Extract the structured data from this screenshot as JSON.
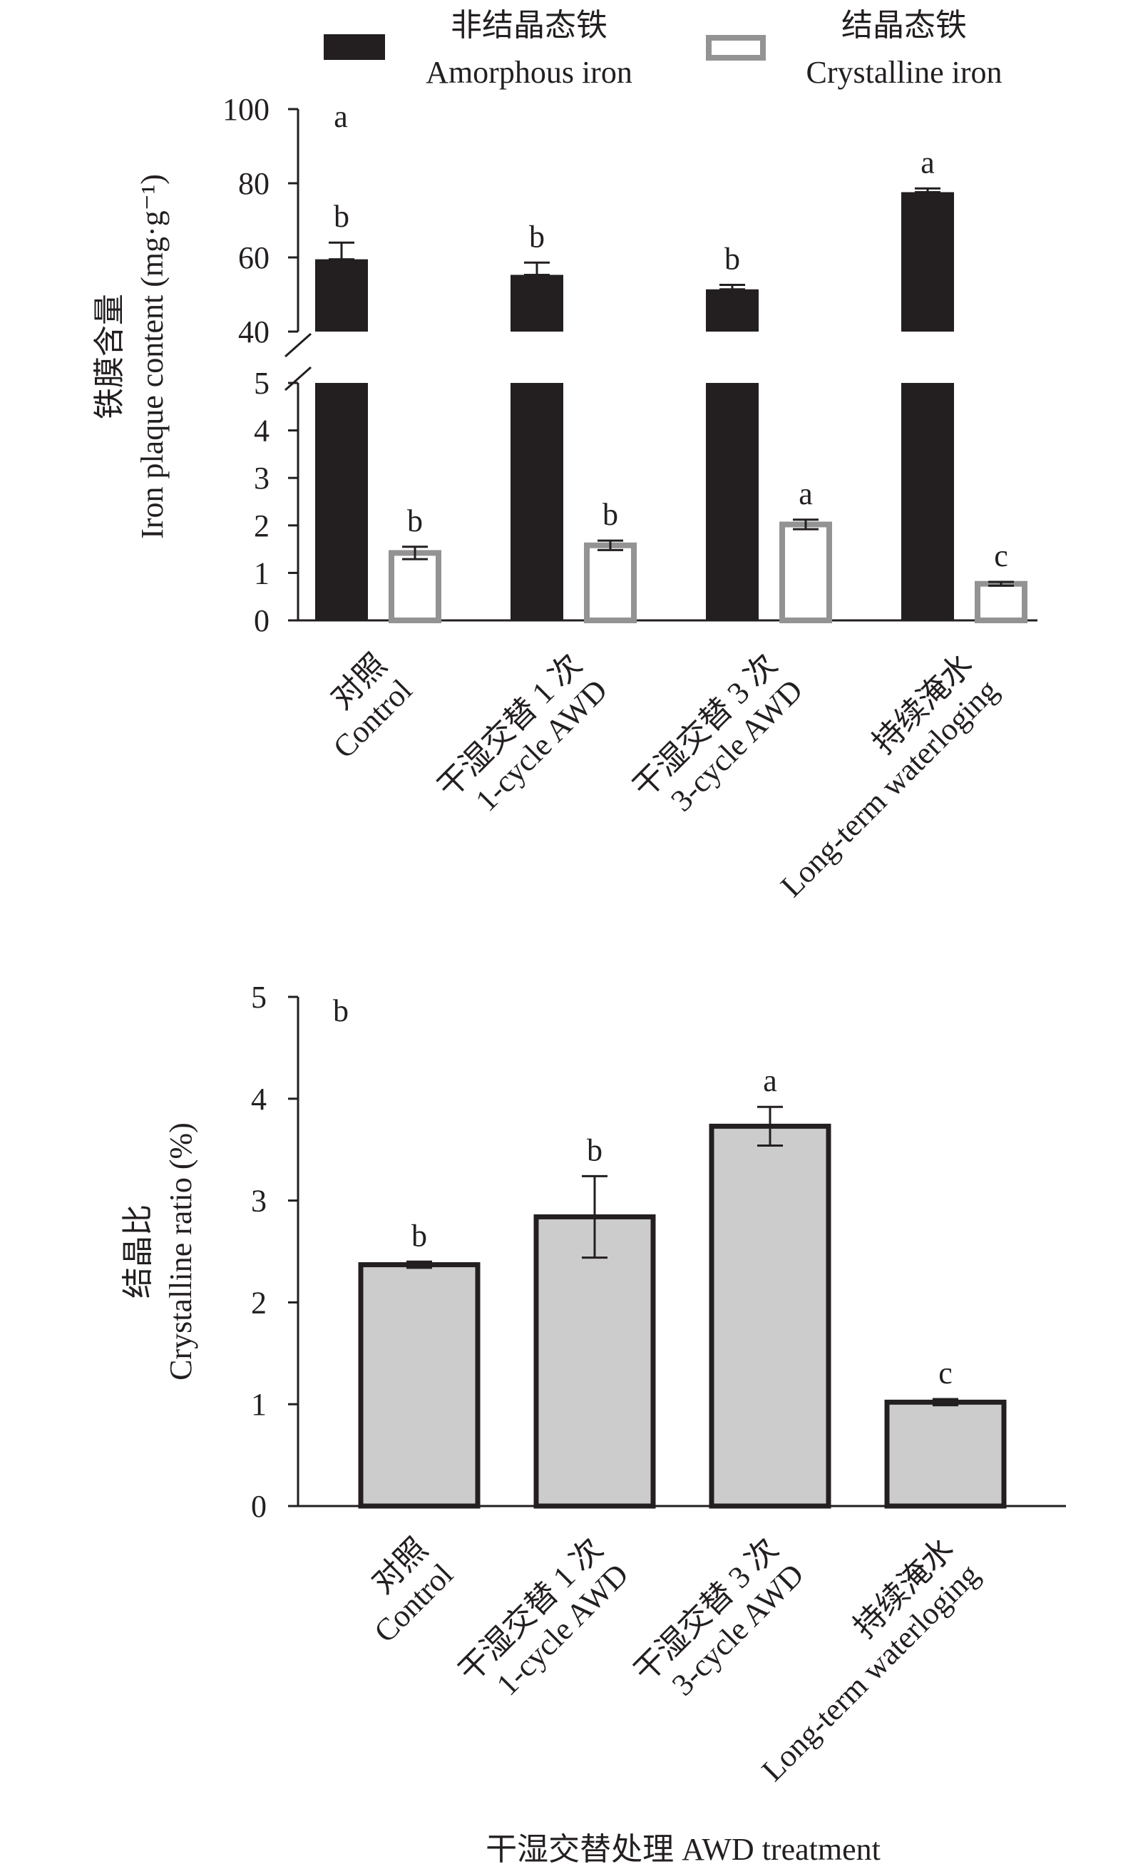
{
  "figure": {
    "x_title": "干湿交替处理 AWD treatment"
  },
  "legend": [
    {
      "zh": "非结晶态铁",
      "en": "Amorphous iron",
      "style": "solid",
      "color": "#231f20"
    },
    {
      "zh": "结晶态铁",
      "en": "Crystalline iron",
      "style": "outline",
      "color": "#939393"
    }
  ],
  "chart_data": [
    {
      "type": "bar",
      "panel_label": "a",
      "ylabel_zh": "铁膜含量",
      "ylabel_en": "Iron plaque content (mg·g⁻¹)",
      "broken_axis": true,
      "upper_ticks": [
        "40",
        "60",
        "80",
        "100"
      ],
      "lower_ticks": [
        "0",
        "1",
        "2",
        "3",
        "4",
        "5"
      ],
      "ylim_upper": [
        40,
        100
      ],
      "ylim_lower": [
        0,
        5
      ],
      "categories": [
        {
          "zh": "对照",
          "en": "Control"
        },
        {
          "zh": "干湿交替 1 次",
          "en": "1-cycle AWD"
        },
        {
          "zh": "干湿交替 3 次",
          "en": "3-cycle AWD"
        },
        {
          "zh": "持续淹水",
          "en": "Long-term waterloging"
        }
      ],
      "series": [
        {
          "name": "Amorphous iron",
          "values": [
            59.5,
            55.3,
            51.4,
            77.6
          ],
          "errors": [
            4.5,
            3.3,
            1.2,
            1.0
          ],
          "letters": [
            "b",
            "b",
            "b",
            "a"
          ]
        },
        {
          "name": "Crystalline iron",
          "values": [
            1.42,
            1.58,
            2.02,
            0.77
          ],
          "errors": [
            0.13,
            0.1,
            0.1,
            0.04
          ],
          "letters": [
            "b",
            "b",
            "a",
            "c"
          ]
        }
      ]
    },
    {
      "type": "bar",
      "panel_label": "b",
      "ylabel_zh": "结晶比",
      "ylabel_en": "Crystalline ratio (%)",
      "ticks": [
        "0",
        "1",
        "2",
        "3",
        "4",
        "5"
      ],
      "ylim": [
        0,
        5
      ],
      "categories": [
        {
          "zh": "对照",
          "en": "Control"
        },
        {
          "zh": "干湿交替 1 次",
          "en": "1-cycle AWD"
        },
        {
          "zh": "干湿交替 3 次",
          "en": "3-cycle AWD"
        },
        {
          "zh": "持续淹水",
          "en": "Long-term waterloging"
        }
      ],
      "series": [
        {
          "values": [
            2.37,
            2.84,
            3.73,
            1.02
          ],
          "errors": [
            0.03,
            0.4,
            0.19,
            0.03
          ],
          "letters": [
            "b",
            "b",
            "a",
            "c"
          ],
          "color": "#cccccc"
        }
      ]
    }
  ]
}
